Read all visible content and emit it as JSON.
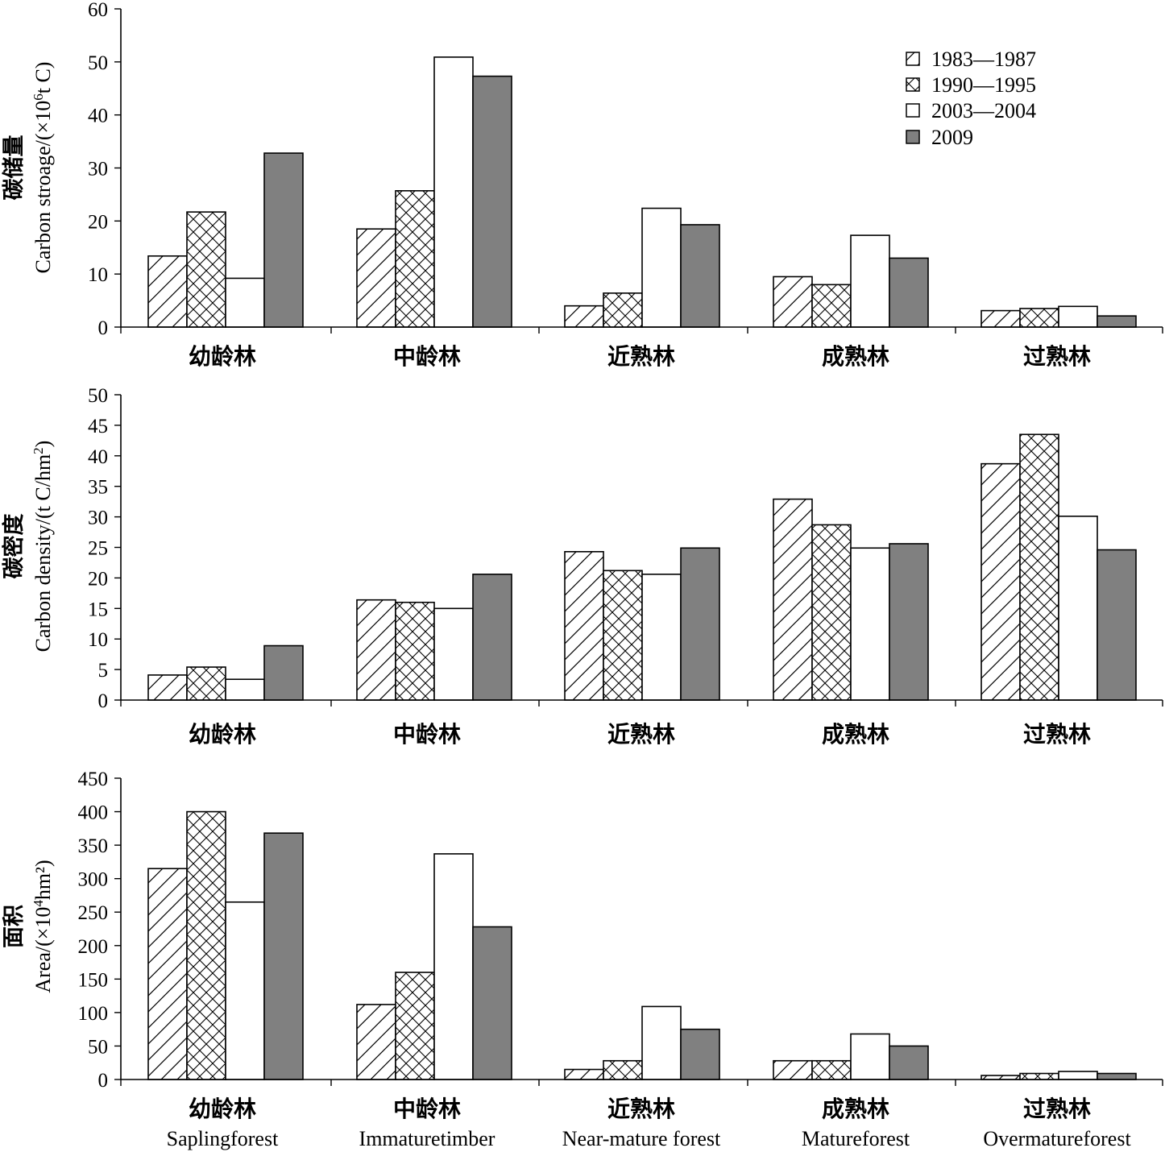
{
  "legend": {
    "entries": [
      {
        "label": "1983—1987",
        "fill": "hatch-diag"
      },
      {
        "label": "1990—1995",
        "fill": "hatch-cross"
      },
      {
        "label": "2003—2004",
        "fill": "#ffffff"
      },
      {
        "label": "2009",
        "fill": "#808080"
      }
    ],
    "placement": "top-right"
  },
  "categories_cn": [
    "幼龄林",
    "中龄林",
    "近熟林",
    "成熟林",
    "过熟林"
  ],
  "categories_en": [
    "Saplingforest",
    "Immaturetimber",
    "Near-mature forest",
    "Matureforest",
    "Overmatureforest"
  ],
  "panels": [
    {
      "ylabel_cn": "碳储量",
      "ylabel_en_pre": "Carbon stroage/(×10",
      "ylabel_en_sup": "6",
      "ylabel_en_post": "t C)"
    },
    {
      "ylabel_cn": "碳密度",
      "ylabel_en_pre": "Carbon density/(t C/hm",
      "ylabel_en_sup": "2",
      "ylabel_en_post": ")"
    },
    {
      "ylabel_cn": "面积",
      "ylabel_en_pre": "Area/(×10",
      "ylabel_en_sup": "4",
      "ylabel_en_post": "hm²)"
    }
  ],
  "chart_data": [
    {
      "type": "bar",
      "ylabel": "碳储量 Carbon stroage/(×10⁶t C)",
      "categories": [
        "幼龄林",
        "中龄林",
        "近熟林",
        "成熟林",
        "过熟林"
      ],
      "ylim": [
        0,
        60
      ],
      "yticks": [
        0,
        10,
        20,
        30,
        40,
        50,
        60
      ],
      "series": [
        {
          "name": "1983—1987",
          "values": [
            13.4,
            18.5,
            4.0,
            9.5,
            3.1
          ]
        },
        {
          "name": "1990—1995",
          "values": [
            21.7,
            25.7,
            6.4,
            8.0,
            3.5
          ]
        },
        {
          "name": "2003—2004",
          "values": [
            9.2,
            50.9,
            22.4,
            17.3,
            3.9
          ]
        },
        {
          "name": "2009",
          "values": [
            32.8,
            47.3,
            19.3,
            13.0,
            2.1
          ]
        }
      ]
    },
    {
      "type": "bar",
      "ylabel": "碳密度 Carbon density/(t C/hm²)",
      "categories": [
        "幼龄林",
        "中龄林",
        "近熟林",
        "成熟林",
        "过熟林"
      ],
      "ylim": [
        0,
        50
      ],
      "yticks": [
        0,
        5,
        10,
        15,
        20,
        25,
        30,
        35,
        40,
        45,
        50
      ],
      "series": [
        {
          "name": "1983—1987",
          "values": [
            4.1,
            16.4,
            24.3,
            32.9,
            38.7
          ]
        },
        {
          "name": "1990—1995",
          "values": [
            5.4,
            16.0,
            21.2,
            28.7,
            43.5
          ]
        },
        {
          "name": "2003—2004",
          "values": [
            3.4,
            15.0,
            20.6,
            24.9,
            30.1
          ]
        },
        {
          "name": "2009",
          "values": [
            8.9,
            20.6,
            24.9,
            25.6,
            24.6
          ]
        }
      ]
    },
    {
      "type": "bar",
      "ylabel": "面积 Area/(×10⁴hm²)",
      "categories": [
        "幼龄林 Saplingforest",
        "中龄林 Immaturetimber",
        "近熟林 Near-mature forest",
        "成熟林 Matureforest",
        "过熟林 Overmatureforest"
      ],
      "ylim": [
        0,
        450
      ],
      "yticks": [
        0,
        50,
        100,
        150,
        200,
        250,
        300,
        350,
        400,
        450
      ],
      "series": [
        {
          "name": "1983—1987",
          "values": [
            315,
            112,
            15,
            28,
            6
          ]
        },
        {
          "name": "1990—1995",
          "values": [
            400,
            160,
            28,
            28,
            9
          ]
        },
        {
          "name": "2003—2004",
          "values": [
            265,
            337,
            109,
            68,
            12
          ]
        },
        {
          "name": "2009",
          "values": [
            368,
            228,
            75,
            50,
            9
          ]
        }
      ]
    }
  ]
}
